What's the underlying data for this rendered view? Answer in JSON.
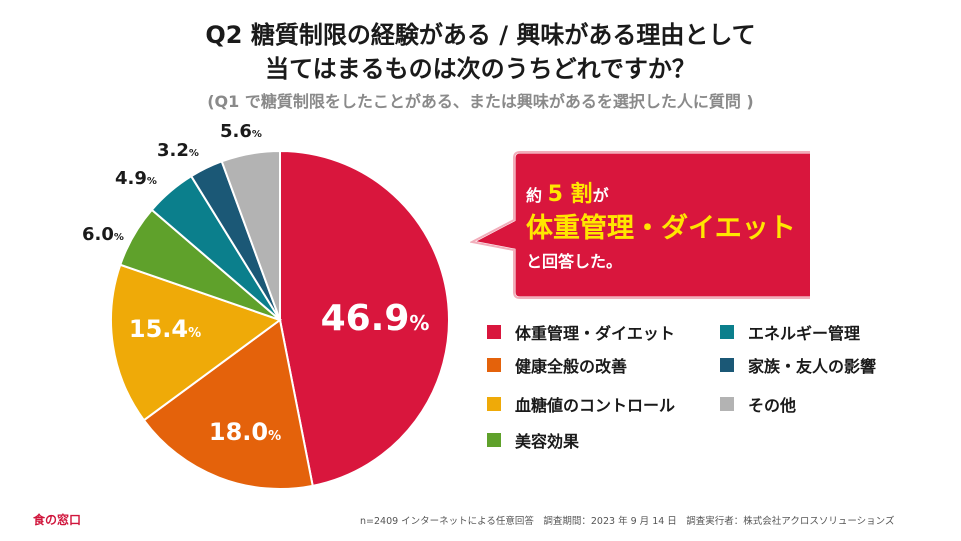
{
  "header": {
    "title_line1": "Q2 糖質制限の経験がある / 興味がある理由として",
    "title_line2": "当てはまるものは次のうちどれですか？",
    "subtitle": "(Q1 で糖質制限をしたことがある、または興味があるを選択した人に質問 )"
  },
  "callout": {
    "prefix": "約",
    "number": "5 割",
    "suffix": "が",
    "highlight": "体重管理・ダイエット",
    "tail": "と回答した。",
    "color": "#d9163d",
    "highlight_color": "#ffe600"
  },
  "chart_data": {
    "type": "pie",
    "title": "Q2 糖質制限の経験がある / 興味がある理由として当てはまるものは次のうちどれですか？",
    "start": "12 o'clock",
    "direction": "clockwise",
    "unit": "%",
    "slices": [
      {
        "label": "体重管理・ダイエット",
        "value": 46.9,
        "display": "46.9",
        "color": "#d9163d"
      },
      {
        "label": "健康全般の改善",
        "value": 18.0,
        "display": "18.0",
        "color": "#e4620b"
      },
      {
        "label": "血糖値のコントロール",
        "value": 15.4,
        "display": "15.4",
        "color": "#efaa08"
      },
      {
        "label": "美容効果",
        "value": 6.0,
        "display": "6.0",
        "color": "#5fa12b"
      },
      {
        "label": "エネルギー管理",
        "value": 4.9,
        "display": "4.9",
        "color": "#0b7f8c"
      },
      {
        "label": "家族・友人の影響",
        "value": 3.2,
        "display": "3.2",
        "color": "#1b5876"
      },
      {
        "label": "その他",
        "value": 5.6,
        "display": "5.6",
        "color": "#b3b3b3"
      }
    ],
    "legend": [
      [
        "体重管理・ダイエット",
        "エネルギー管理"
      ],
      [
        "健康全般の改善",
        "家族・友人の影響"
      ],
      [
        "血糖値のコントロール",
        "その他"
      ],
      [
        "美容効果"
      ]
    ]
  },
  "footer": {
    "note": "n=2409 インターネットによる任意回答　調査期間：2023 年 9 月 14 日　調査実行者：株式会社アクロスソリューションズ",
    "brand": "食の窓口"
  }
}
